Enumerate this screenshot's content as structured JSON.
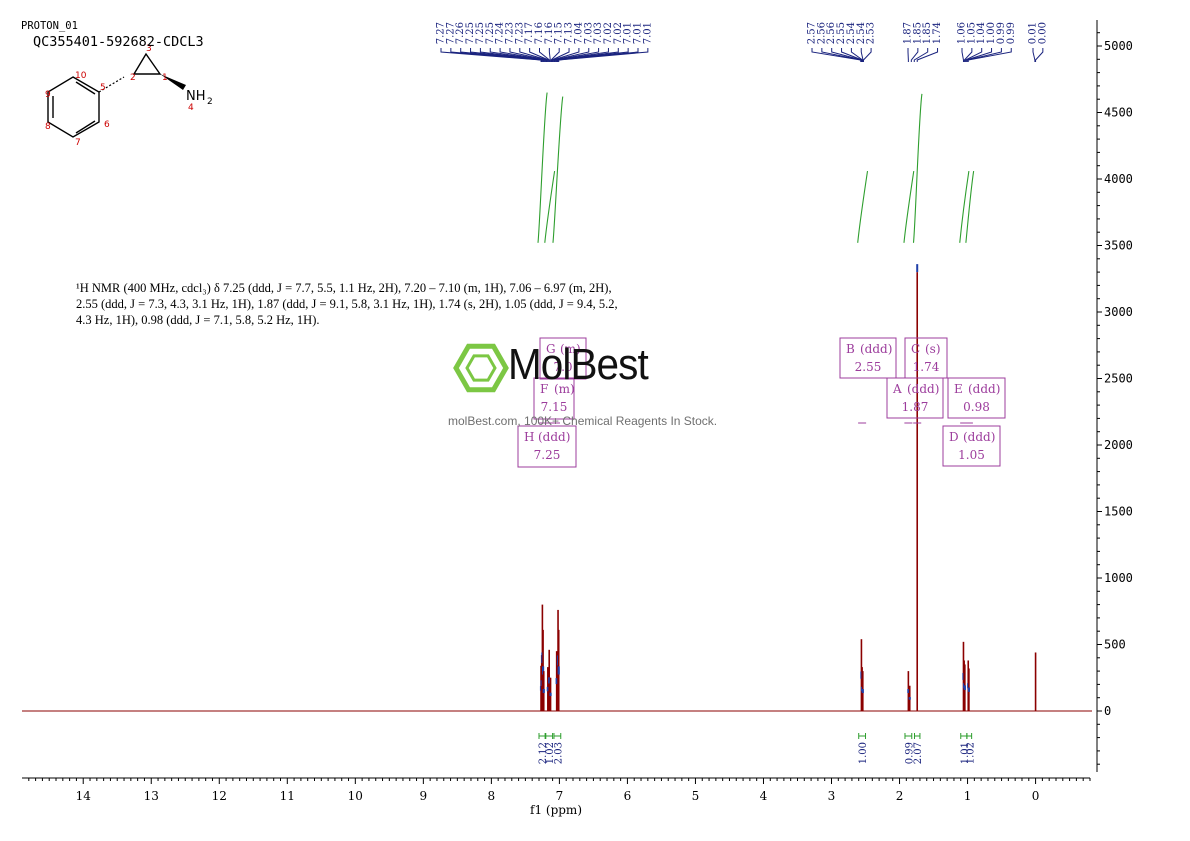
{
  "header": {
    "file_title": "PROTON_01",
    "sample_id": "QC355401-592682-CDCL3"
  },
  "structure": {
    "atom_labels": [
      "1",
      "2",
      "3",
      "4",
      "5",
      "6",
      "7",
      "8",
      "9",
      "10"
    ],
    "amine_label": "NH",
    "amine_sub": "2"
  },
  "nmr_summary": "¹H NMR (400 MHz, cdcl₃) δ 7.25 (ddd, J = 7.7, 5.5, 1.1 Hz, 2H), 7.20 – 7.10 (m, 1H), 7.06 – 6.97 (m, 2H), 2.55 (ddd, J = 7.3, 4.3, 3.1 Hz, 1H), 1.87 (ddd, J = 9.1, 5.8, 3.1 Hz, 1H), 1.74 (s, 2H), 1.05 (ddd, J = 9.4, 5.2, 4.3 Hz, 1H), 0.98 (ddd, J = 7.1, 5.8, 5.2 Hz, 1H).",
  "watermark": {
    "logo_text": "MolBest",
    "tagline": "molBest.com, 100K+ Chemical Reagents In Stock."
  },
  "colors": {
    "spectrum": "#8b0000",
    "peak_label": "#1a237e",
    "integral": "#2e9e2e",
    "multiplet_box": "#9c3c9c",
    "axis": "#000000"
  },
  "chart_data": {
    "type": "line",
    "xlabel": "f1 (ppm)",
    "xlim": [
      14.9,
      -0.8
    ],
    "ylim": [
      -450,
      5250
    ],
    "x_ticks": [
      14,
      13,
      12,
      11,
      10,
      9,
      8,
      7,
      6,
      5,
      4,
      3,
      2,
      1,
      0
    ],
    "y_ticks": [
      0,
      500,
      1000,
      1500,
      2000,
      2500,
      3000,
      3500,
      4000,
      4500,
      5000
    ],
    "peak_labels": [
      "7.27",
      "7.27",
      "7.26",
      "7.25",
      "7.25",
      "7.25",
      "7.24",
      "7.23",
      "7.23",
      "7.17",
      "7.16",
      "7.16",
      "7.15",
      "7.13",
      "7.04",
      "7.03",
      "7.03",
      "7.02",
      "7.02",
      "7.01",
      "7.01",
      "7.01",
      "2.57",
      "2.56",
      "2.56",
      "2.55",
      "2.54",
      "2.54",
      "2.53",
      "1.87",
      "1.85",
      "1.85",
      "1.74",
      "1.06",
      "1.05",
      "1.04",
      "1.00",
      "0.99",
      "0.99",
      "0.01",
      "0.00"
    ],
    "peaks": [
      {
        "ppm": 7.27,
        "height": 340
      },
      {
        "ppm": 7.26,
        "height": 420
      },
      {
        "ppm": 7.25,
        "height": 800
      },
      {
        "ppm": 7.24,
        "height": 610
      },
      {
        "ppm": 7.23,
        "height": 300
      },
      {
        "ppm": 7.17,
        "height": 330
      },
      {
        "ppm": 7.15,
        "height": 460
      },
      {
        "ppm": 7.13,
        "height": 250
      },
      {
        "ppm": 7.04,
        "height": 450
      },
      {
        "ppm": 7.02,
        "height": 760
      },
      {
        "ppm": 7.01,
        "height": 610
      },
      {
        "ppm": 2.56,
        "height": 540
      },
      {
        "ppm": 2.55,
        "height": 330
      },
      {
        "ppm": 2.54,
        "height": 300
      },
      {
        "ppm": 1.87,
        "height": 300
      },
      {
        "ppm": 1.85,
        "height": 190
      },
      {
        "ppm": 1.74,
        "height": 3300
      },
      {
        "ppm": 1.06,
        "height": 520
      },
      {
        "ppm": 1.05,
        "height": 380
      },
      {
        "ppm": 1.04,
        "height": 350
      },
      {
        "ppm": 0.99,
        "height": 380
      },
      {
        "ppm": 0.98,
        "height": 320
      },
      {
        "ppm": 0.0,
        "height": 440
      }
    ],
    "integrals": [
      {
        "from": 7.3,
        "to": 7.21,
        "value": "2.12",
        "curve_low": 3520,
        "curve_high": 4650
      },
      {
        "from": 7.2,
        "to": 7.1,
        "value": "1.02",
        "curve_low": 3520,
        "curve_high": 4060
      },
      {
        "from": 7.08,
        "to": 6.98,
        "value": "2.03",
        "curve_low": 3520,
        "curve_high": 4620
      },
      {
        "from": 2.6,
        "to": 2.5,
        "value": "1.00",
        "curve_low": 3520,
        "curve_high": 4060
      },
      {
        "from": 1.92,
        "to": 1.82,
        "value": "0.99",
        "curve_low": 3520,
        "curve_high": 4060
      },
      {
        "from": 1.78,
        "to": 1.7,
        "value": "2.07",
        "curve_low": 3520,
        "curve_high": 4640
      },
      {
        "from": 1.1,
        "to": 1.01,
        "value": "1.01",
        "curve_low": 3520,
        "curve_high": 4060
      },
      {
        "from": 1.01,
        "to": 0.94,
        "value": "1.02",
        "curve_low": 3520,
        "curve_high": 4060
      }
    ],
    "multiplets": [
      {
        "letter": "G",
        "type": "(m)",
        "shift": "7.0"
      },
      {
        "letter": "F",
        "type": "(m)",
        "shift": "7.15"
      },
      {
        "letter": "H",
        "type": "(ddd)",
        "shift": "7.25"
      },
      {
        "letter": "B",
        "type": "(ddd)",
        "shift": "2.55"
      },
      {
        "letter": "C",
        "type": "(s)",
        "shift": "1.74"
      },
      {
        "letter": "A",
        "type": "(ddd)",
        "shift": "1.87"
      },
      {
        "letter": "E",
        "type": "(ddd)",
        "shift": "0.98"
      },
      {
        "letter": "D",
        "type": "(ddd)",
        "shift": "1.05"
      }
    ]
  }
}
